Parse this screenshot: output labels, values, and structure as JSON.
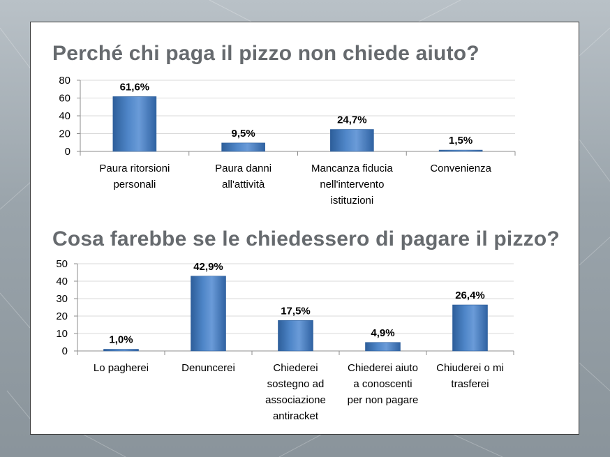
{
  "slide": {
    "title1": "Perché chi paga il pizzo non chiede aiuto?",
    "title2": "Cosa farebbe se le chiedessero di pagare il pizzo?"
  },
  "colors": {
    "bar": "#4a7ebf",
    "bar_dark": "#2d5e9a",
    "bar_light": "#7aa6dc",
    "grid": "#d9d9d9",
    "axis": "#8c8c8c"
  },
  "chart_data": [
    {
      "type": "bar",
      "title": "Perché chi paga il pizzo non chiede aiuto?",
      "categories": [
        [
          "Paura ritorsioni",
          "personali"
        ],
        [
          "Paura danni",
          "all'attività"
        ],
        [
          "Mancanza fiducia",
          "nell'intervento",
          "istituzioni"
        ],
        [
          "Convenienza"
        ]
      ],
      "values": [
        61.6,
        9.5,
        24.7,
        1.5
      ],
      "data_labels": [
        "61,6%",
        "9,5%",
        "24,7%",
        "1,5%"
      ],
      "yticks": [
        0,
        20,
        40,
        60,
        80
      ],
      "ylim": [
        0,
        80
      ],
      "grid": true
    },
    {
      "type": "bar",
      "title": "Cosa farebbe se le chiedessero di pagare il pizzo?",
      "categories": [
        [
          "Lo pagherei"
        ],
        [
          "Denuncerei"
        ],
        [
          "Chiederei",
          "sostegno ad",
          "associazione",
          "antiracket"
        ],
        [
          "Chiederei aiuto",
          "a conoscenti",
          "per non pagare"
        ],
        [
          "Chiuderei o mi",
          "trasferei"
        ]
      ],
      "values": [
        1.0,
        42.9,
        17.5,
        4.9,
        26.4
      ],
      "data_labels": [
        "1,0%",
        "42,9%",
        "17,5%",
        "4,9%",
        "26,4%"
      ],
      "yticks": [
        0,
        10,
        20,
        30,
        40,
        50
      ],
      "ylim": [
        0,
        50
      ],
      "grid": true
    }
  ]
}
